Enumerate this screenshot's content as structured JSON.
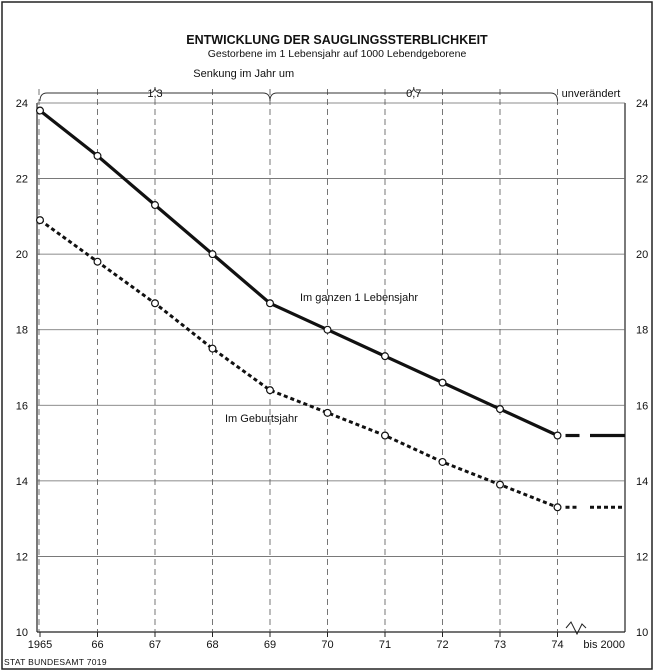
{
  "chart_data": {
    "type": "line",
    "title": "ENTWICKLUNG DER SAUGLINGSSTERBLICHKEIT",
    "subtitle": "Gestorbene im 1 Lebensjahr auf 1000 Lebendgeborene",
    "x": [
      "1965",
      "66",
      "67",
      "68",
      "69",
      "70",
      "71",
      "72",
      "73",
      "74"
    ],
    "x_extension_label": "bis 2000",
    "ylim": [
      10,
      24
    ],
    "yticks": [
      10,
      12,
      14,
      16,
      18,
      20,
      22,
      24
    ],
    "grid": true,
    "series": [
      {
        "name": "Im ganzen 1 Lebensjahr",
        "style": "solid",
        "values": [
          23.8,
          22.6,
          21.3,
          20.0,
          18.7,
          18.0,
          17.3,
          16.6,
          15.9,
          15.2
        ],
        "projection": 15.2
      },
      {
        "name": "Im Geburtsjahr",
        "style": "dotted",
        "values": [
          20.9,
          19.8,
          18.7,
          17.5,
          16.4,
          15.8,
          15.2,
          14.5,
          13.9,
          13.3
        ],
        "projection": 13.3
      }
    ],
    "annotations": {
      "header": "Senkung im Jahr um",
      "period1": "1,3",
      "period2": "0,7",
      "period3": "unverändert"
    },
    "source": "STAT BUNDESAMT 7019"
  }
}
